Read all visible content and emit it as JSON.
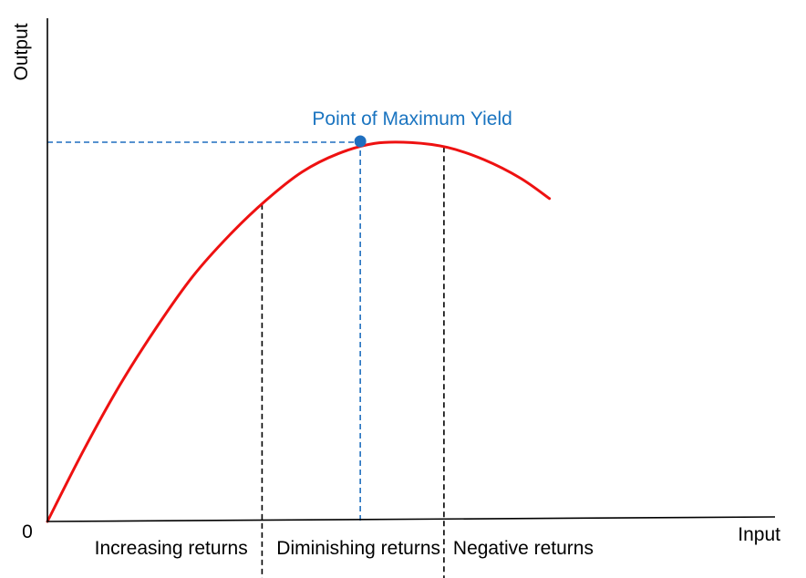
{
  "chart_data": {
    "type": "line",
    "title": "",
    "xlabel": "Input",
    "ylabel": "Output",
    "origin_label": "0",
    "xlim": [
      0,
      1
    ],
    "ylim": [
      0,
      1
    ],
    "grid": false,
    "colors": {
      "curve": "#ee1111",
      "max_point": "#1f6fbf",
      "max_label": "#1a74c0",
      "guide_black": "#000000",
      "axis": "#000000"
    },
    "series": [
      {
        "x": [
          0,
          0.05,
          0.1,
          0.15,
          0.2,
          0.25,
          0.3,
          0.35,
          0.4,
          0.45,
          0.5,
          0.55,
          0.6,
          0.65,
          0.69
        ],
        "values": [
          0,
          0.175,
          0.335,
          0.475,
          0.6,
          0.7,
          0.785,
          0.855,
          0.9,
          0.925,
          0.927,
          0.915,
          0.885,
          0.84,
          0.79
        ]
      }
    ],
    "annotations": {
      "max_point": {
        "label": "Point of Maximum Yield",
        "x": 0.43,
        "y": 0.93
      },
      "boundaries": [
        0.295,
        0.545
      ],
      "regions": [
        {
          "label": "Increasing returns"
        },
        {
          "label": "Diminishing returns"
        },
        {
          "label": "Negative returns"
        }
      ]
    }
  }
}
